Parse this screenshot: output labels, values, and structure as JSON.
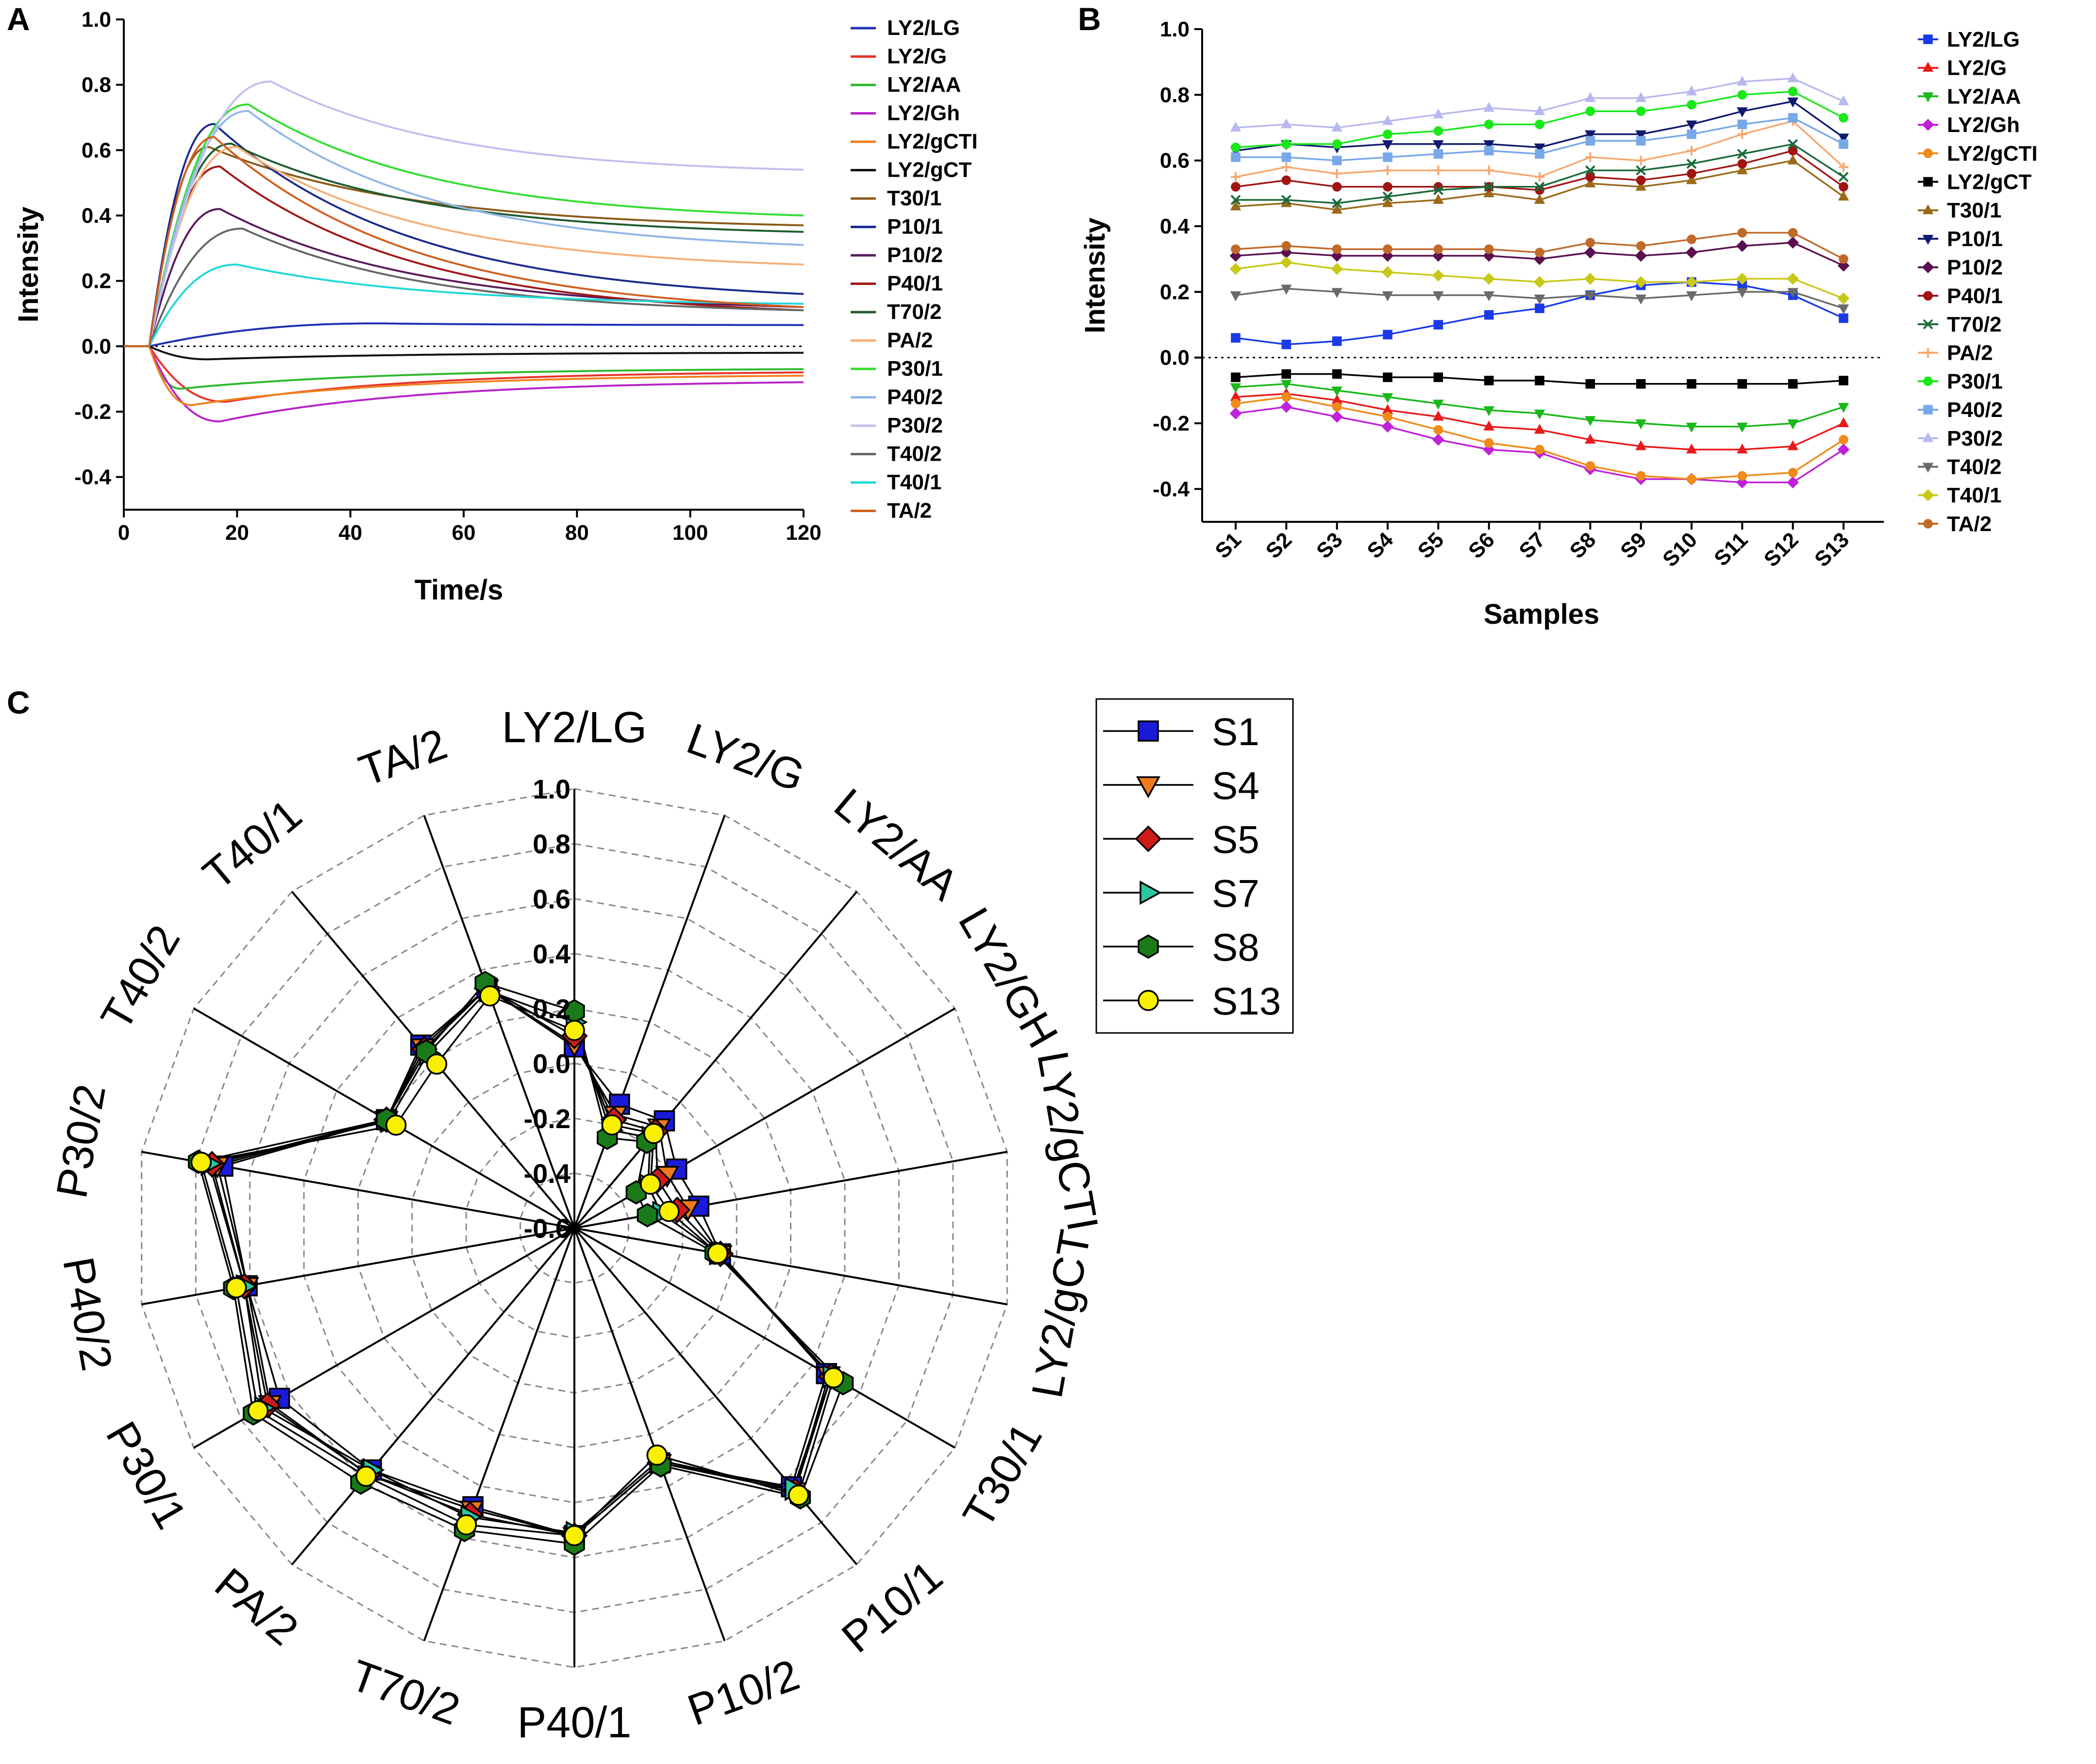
{
  "figure": {
    "panel_a_letter": "A",
    "panel_b_letter": "B",
    "panel_c_letter": "C"
  },
  "chart_data": [
    {
      "panel": "A",
      "type": "line",
      "title": "",
      "xlabel": "Time/s",
      "ylabel": "Intensity",
      "xlim": [
        0,
        120
      ],
      "ylim": [
        -0.5,
        1.0
      ],
      "xticks": [
        "0",
        "20",
        "40",
        "60",
        "80",
        "100",
        "120"
      ],
      "yticks": [
        "-0.4",
        "-0.2",
        "0.0",
        "0.2",
        "0.4",
        "0.6",
        "0.8",
        "1.0"
      ],
      "zero_line": "dotted",
      "legend_position": "right",
      "series": [
        {
          "name": "LY2/LG",
          "color": "#1f2fb0",
          "peak": 0.07,
          "peak_time": 45,
          "end": 0.065
        },
        {
          "name": "LY2/G",
          "color": "#e8322a",
          "peak": -0.17,
          "peak_time": 18,
          "end": -0.08
        },
        {
          "name": "LY2/AA",
          "color": "#2eb82e",
          "peak": -0.13,
          "peak_time": 10,
          "end": -0.07
        },
        {
          "name": "LY2/Gh",
          "color": "#b824c8",
          "peak": -0.23,
          "peak_time": 17,
          "end": -0.11
        },
        {
          "name": "LY2/gCTI",
          "color": "#f08020",
          "peak": -0.18,
          "peak_time": 12,
          "end": -0.09
        },
        {
          "name": "LY2/gCT",
          "color": "#111111",
          "peak": -0.04,
          "peak_time": 15,
          "end": -0.02
        },
        {
          "name": "T30/1",
          "color": "#8b5a1a",
          "peak": 0.61,
          "peak_time": 15,
          "end": 0.37
        },
        {
          "name": "P10/1",
          "color": "#1a2a8c",
          "peak": 0.68,
          "peak_time": 16,
          "end": 0.16
        },
        {
          "name": "P10/2",
          "color": "#5a1a5a",
          "peak": 0.42,
          "peak_time": 17,
          "end": 0.12
        },
        {
          "name": "P40/1",
          "color": "#a01818",
          "peak": 0.55,
          "peak_time": 17,
          "end": 0.11
        },
        {
          "name": "T70/2",
          "color": "#1f5c2e",
          "peak": 0.62,
          "peak_time": 19,
          "end": 0.35
        },
        {
          "name": "PA/2",
          "color": "#f5b07a",
          "peak": 0.61,
          "peak_time": 20,
          "end": 0.25
        },
        {
          "name": "P30/1",
          "color": "#33dd33",
          "peak": 0.74,
          "peak_time": 22,
          "end": 0.4
        },
        {
          "name": "P40/2",
          "color": "#8fb8e8",
          "peak": 0.72,
          "peak_time": 22,
          "end": 0.31
        },
        {
          "name": "P30/2",
          "color": "#c0c0f0",
          "peak": 0.81,
          "peak_time": 26,
          "end": 0.54
        },
        {
          "name": "T40/2",
          "color": "#666666",
          "peak": 0.36,
          "peak_time": 21,
          "end": 0.11
        },
        {
          "name": "T40/1",
          "color": "#22d8d8",
          "peak": 0.25,
          "peak_time": 20,
          "end": 0.13
        },
        {
          "name": "TA/2",
          "color": "#d06020",
          "peak": 0.64,
          "peak_time": 16,
          "end": 0.12
        }
      ]
    },
    {
      "panel": "B",
      "type": "line",
      "title": "",
      "xlabel": "Samples",
      "ylabel": "Intensity",
      "ylim": [
        -0.5,
        1.0
      ],
      "categories": [
        "S1",
        "S2",
        "S3",
        "S4",
        "S5",
        "S6",
        "S7",
        "S8",
        "S9",
        "S10",
        "S11",
        "S12",
        "S13"
      ],
      "yticks": [
        "-0.4",
        "-0.2",
        "0.0",
        "0.2",
        "0.4",
        "0.6",
        "0.8",
        "1.0"
      ],
      "zero_line": "dotted",
      "legend_position": "right",
      "series": [
        {
          "name": "LY2/LG",
          "color": "#1a3ae8",
          "marker": "square",
          "values": [
            0.06,
            0.04,
            0.05,
            0.07,
            0.1,
            0.13,
            0.15,
            0.19,
            0.22,
            0.23,
            0.22,
            0.19,
            0.12
          ]
        },
        {
          "name": "LY2/G",
          "color": "#e81a1a",
          "marker": "triangle-up",
          "values": [
            -0.12,
            -0.11,
            -0.13,
            -0.16,
            -0.18,
            -0.21,
            -0.22,
            -0.25,
            -0.27,
            -0.28,
            -0.28,
            -0.27,
            -0.2
          ]
        },
        {
          "name": "LY2/AA",
          "color": "#1ab81a",
          "marker": "triangle-down",
          "values": [
            -0.09,
            -0.08,
            -0.1,
            -0.12,
            -0.14,
            -0.16,
            -0.17,
            -0.19,
            -0.2,
            -0.21,
            -0.21,
            -0.2,
            -0.15
          ]
        },
        {
          "name": "LY2/Gh",
          "color": "#c020d8",
          "marker": "diamond",
          "values": [
            -0.17,
            -0.15,
            -0.18,
            -0.21,
            -0.25,
            -0.28,
            -0.29,
            -0.34,
            -0.37,
            -0.37,
            -0.38,
            -0.38,
            -0.28
          ]
        },
        {
          "name": "LY2/gCTI",
          "color": "#f08a1a",
          "marker": "circle",
          "values": [
            -0.14,
            -0.12,
            -0.15,
            -0.18,
            -0.22,
            -0.26,
            -0.28,
            -0.33,
            -0.36,
            -0.37,
            -0.36,
            -0.35,
            -0.25
          ]
        },
        {
          "name": "LY2/gCT",
          "color": "#000000",
          "marker": "square",
          "values": [
            -0.06,
            -0.05,
            -0.05,
            -0.06,
            -0.06,
            -0.07,
            -0.07,
            -0.08,
            -0.08,
            -0.08,
            -0.08,
            -0.08,
            -0.07
          ]
        },
        {
          "name": "T30/1",
          "color": "#9a6a1a",
          "marker": "triangle-up",
          "values": [
            0.46,
            0.47,
            0.45,
            0.47,
            0.48,
            0.5,
            0.48,
            0.53,
            0.52,
            0.54,
            0.57,
            0.6,
            0.49
          ]
        },
        {
          "name": "P10/1",
          "color": "#101a70",
          "marker": "triangle-down",
          "values": [
            0.63,
            0.65,
            0.64,
            0.65,
            0.65,
            0.65,
            0.64,
            0.68,
            0.68,
            0.71,
            0.75,
            0.78,
            0.67
          ]
        },
        {
          "name": "P10/2",
          "color": "#5a1050",
          "marker": "diamond",
          "values": [
            0.31,
            0.32,
            0.31,
            0.31,
            0.31,
            0.31,
            0.3,
            0.32,
            0.31,
            0.32,
            0.34,
            0.35,
            0.28
          ]
        },
        {
          "name": "P40/1",
          "color": "#a01414",
          "marker": "circle",
          "values": [
            0.52,
            0.54,
            0.52,
            0.52,
            0.52,
            0.52,
            0.51,
            0.55,
            0.54,
            0.56,
            0.59,
            0.63,
            0.52
          ]
        },
        {
          "name": "T70/2",
          "color": "#1a6a3a",
          "marker": "x",
          "values": [
            0.48,
            0.48,
            0.47,
            0.49,
            0.51,
            0.52,
            0.52,
            0.57,
            0.57,
            0.59,
            0.62,
            0.65,
            0.55
          ]
        },
        {
          "name": "PA/2",
          "color": "#f5a870",
          "marker": "plus",
          "values": [
            0.55,
            0.58,
            0.56,
            0.57,
            0.57,
            0.57,
            0.55,
            0.61,
            0.6,
            0.63,
            0.68,
            0.72,
            0.58
          ]
        },
        {
          "name": "P30/1",
          "color": "#1ae81a",
          "marker": "circle",
          "values": [
            0.64,
            0.65,
            0.65,
            0.68,
            0.69,
            0.71,
            0.71,
            0.75,
            0.75,
            0.77,
            0.8,
            0.81,
            0.73
          ]
        },
        {
          "name": "P40/2",
          "color": "#78a8e8",
          "marker": "square",
          "values": [
            0.61,
            0.61,
            0.6,
            0.61,
            0.62,
            0.63,
            0.62,
            0.66,
            0.66,
            0.68,
            0.71,
            0.73,
            0.65
          ]
        },
        {
          "name": "P30/2",
          "color": "#b8b8f0",
          "marker": "triangle-up",
          "values": [
            0.7,
            0.71,
            0.7,
            0.72,
            0.74,
            0.76,
            0.75,
            0.79,
            0.79,
            0.81,
            0.84,
            0.85,
            0.78
          ]
        },
        {
          "name": "T40/2",
          "color": "#6a6a6a",
          "marker": "triangle-down",
          "values": [
            0.19,
            0.21,
            0.2,
            0.19,
            0.19,
            0.19,
            0.18,
            0.19,
            0.18,
            0.19,
            0.2,
            0.2,
            0.15
          ]
        },
        {
          "name": "T40/1",
          "color": "#c8c81a",
          "marker": "diamond",
          "values": [
            0.27,
            0.29,
            0.27,
            0.26,
            0.25,
            0.24,
            0.23,
            0.24,
            0.23,
            0.23,
            0.24,
            0.24,
            0.18
          ]
        },
        {
          "name": "TA/2",
          "color": "#c06a2a",
          "marker": "circle",
          "values": [
            0.33,
            0.34,
            0.33,
            0.33,
            0.33,
            0.33,
            0.32,
            0.35,
            0.34,
            0.36,
            0.38,
            0.38,
            0.3
          ]
        }
      ]
    },
    {
      "panel": "C",
      "type": "radar",
      "title": "",
      "axes": [
        "LY2/LG",
        "LY2/G",
        "LY2/AA",
        "LY2/GH",
        "LY2/gCTI",
        "LY2/gCT",
        "T30/1",
        "P10/1",
        "P10/2",
        "P40/1",
        "T70/2",
        "PA/2",
        "P30/1",
        "P40/2",
        "P30/2",
        "T40/2",
        "T40/1",
        "TA/2"
      ],
      "rlim": [
        -0.6,
        1.0
      ],
      "rticks": [
        "-0.6",
        "-0.4",
        "-0.2",
        "0.0",
        "0.2",
        "0.4",
        "0.6",
        "0.8",
        "1.0"
      ],
      "legend_position": "right",
      "series": [
        {
          "name": "S1",
          "marker": "square",
          "color": "#1a1ad8",
          "values": [
            0.06,
            -0.12,
            -0.09,
            -0.17,
            -0.14,
            -0.06,
            0.46,
            0.63,
            0.31,
            0.52,
            0.48,
            0.55,
            0.64,
            0.61,
            0.7,
            0.19,
            0.27,
            0.33
          ]
        },
        {
          "name": "S4",
          "marker": "triangle-down",
          "color": "#f07a1a",
          "values": [
            0.07,
            -0.16,
            -0.12,
            -0.21,
            -0.18,
            -0.06,
            0.47,
            0.65,
            0.31,
            0.52,
            0.49,
            0.57,
            0.68,
            0.61,
            0.72,
            0.19,
            0.26,
            0.33
          ]
        },
        {
          "name": "S5",
          "marker": "diamond",
          "color": "#d01a1a",
          "values": [
            0.1,
            -0.18,
            -0.14,
            -0.25,
            -0.22,
            -0.06,
            0.48,
            0.65,
            0.31,
            0.52,
            0.51,
            0.57,
            0.69,
            0.62,
            0.74,
            0.19,
            0.25,
            0.33
          ]
        },
        {
          "name": "S7",
          "marker": "triangle-right",
          "color": "#2ac8a0",
          "values": [
            0.15,
            -0.22,
            -0.17,
            -0.29,
            -0.28,
            -0.07,
            0.48,
            0.64,
            0.3,
            0.51,
            0.52,
            0.55,
            0.71,
            0.62,
            0.75,
            0.18,
            0.23,
            0.32
          ]
        },
        {
          "name": "S8",
          "marker": "hexagon",
          "color": "#1a7a1a",
          "values": [
            0.19,
            -0.25,
            -0.19,
            -0.34,
            -0.33,
            -0.08,
            0.53,
            0.68,
            0.32,
            0.55,
            0.57,
            0.61,
            0.75,
            0.66,
            0.79,
            0.19,
            0.24,
            0.35
          ]
        },
        {
          "name": "S13",
          "marker": "circle",
          "color": "#f8f000",
          "values": [
            0.12,
            -0.2,
            -0.15,
            -0.28,
            -0.25,
            -0.07,
            0.49,
            0.67,
            0.28,
            0.52,
            0.55,
            0.58,
            0.73,
            0.65,
            0.78,
            0.15,
            0.18,
            0.3
          ]
        }
      ]
    }
  ]
}
